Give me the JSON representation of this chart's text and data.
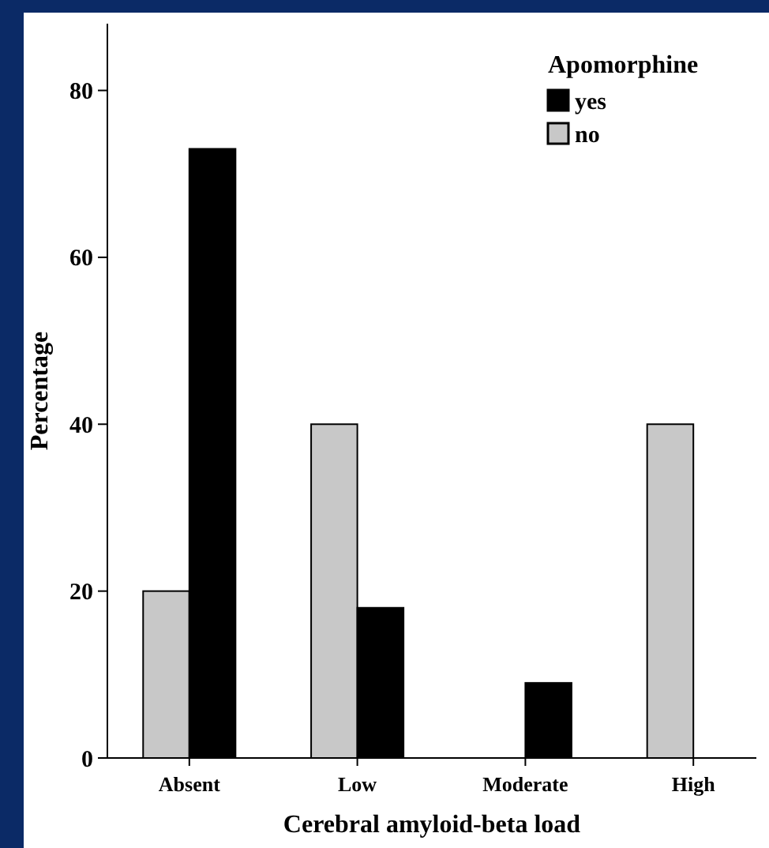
{
  "chart_data": {
    "type": "bar",
    "xlabel": "Cerebral amyloid-beta load",
    "ylabel": "Percentage",
    "legend_title": "Apomorphine",
    "categories": [
      "Absent",
      "Low",
      "Moderate",
      "High"
    ],
    "series": [
      {
        "name": "no",
        "color": "#c8c8c8",
        "values": [
          20,
          40,
          0,
          40
        ]
      },
      {
        "name": "yes",
        "color": "#000000",
        "values": [
          73,
          18,
          9,
          0
        ]
      }
    ],
    "ylim": [
      0,
      88
    ],
    "yticks": [
      0,
      20,
      40,
      60,
      80
    ],
    "grid": false,
    "legend": "top right"
  }
}
